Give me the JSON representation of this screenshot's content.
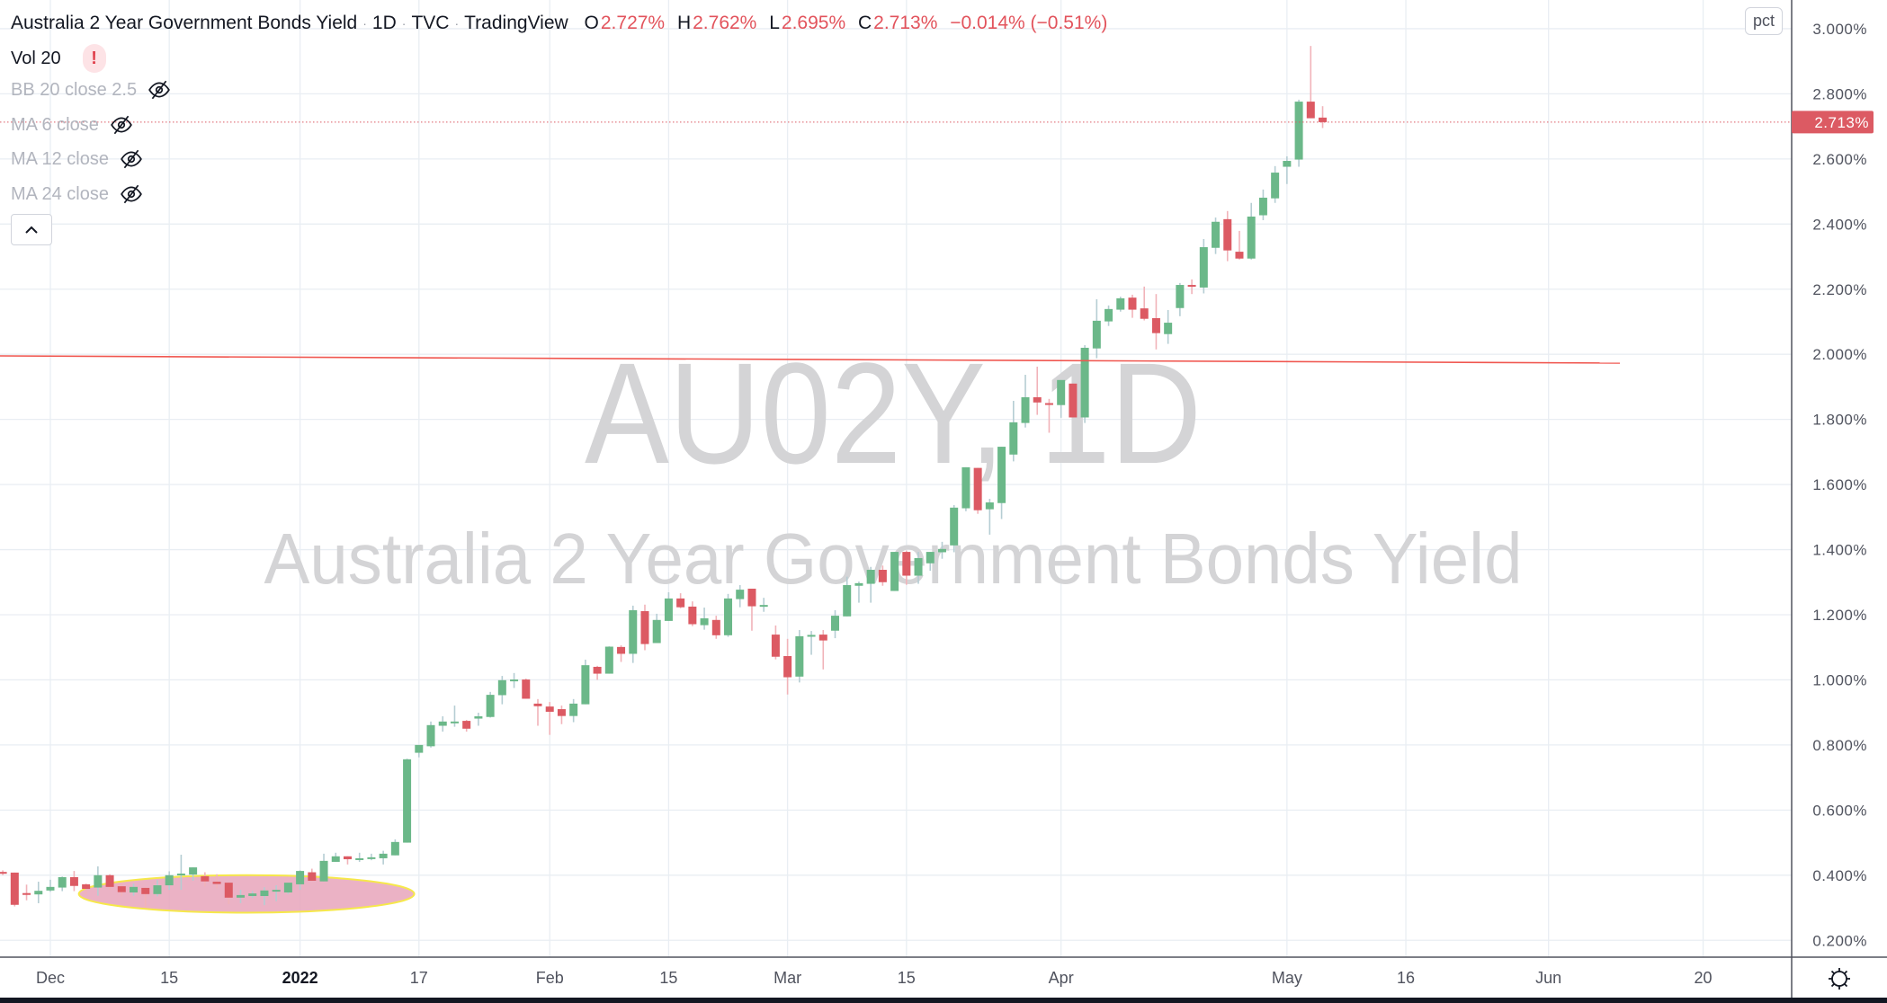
{
  "header": {
    "title": "Australia 2 Year Government Bonds Yield",
    "interval": "1D",
    "exchange": "TVC",
    "source": "TradingView",
    "separator": "·",
    "ohlc": {
      "o_label": "O",
      "o_value": "2.727%",
      "h_label": "H",
      "h_value": "2.762%",
      "l_label": "L",
      "l_value": "2.695%",
      "c_label": "C",
      "c_value": "2.713%",
      "change": "−0.014% (−0.51%)"
    }
  },
  "indicators": [
    {
      "label": "Vol 20",
      "status": "error",
      "status_glyph": "!"
    },
    {
      "label": "BB 20 close 2.5",
      "hidden": true
    },
    {
      "label": "MA 6 close",
      "hidden": true
    },
    {
      "label": "MA 12 close",
      "hidden": true
    },
    {
      "label": "MA 24 close",
      "hidden": true
    }
  ],
  "price_axis": {
    "scale_button": "pct",
    "last_price_label": "2.713%",
    "last_price": 2.713,
    "tick_labels": [
      "3.000%",
      "2.800%",
      "2.600%",
      "2.400%",
      "2.200%",
      "2.000%",
      "1.800%",
      "1.600%",
      "1.400%",
      "1.200%",
      "1.000%",
      "0.800%",
      "0.600%",
      "0.400%",
      "0.200%"
    ]
  },
  "watermark": {
    "symbol": "AU02Y, 1D",
    "description": "Australia 2 Year Government Bonds Yield"
  },
  "colors": {
    "up": "#6bb889",
    "down": "#dc5a63",
    "up_wick": "#b5cdd3",
    "down_wick": "#f1b3b9",
    "last_price": "#dc5a63",
    "trend_line": "#f0564f",
    "highlight_fill": "#e8a4bb",
    "highlight_stroke": "#f6e84a",
    "grid": "#e9eef3"
  },
  "chart_data": {
    "type": "candlestick",
    "symbol": "AU02Y",
    "interval": "1D",
    "y_unit": "%",
    "ylim": [
      0.2,
      3.0
    ],
    "grid": true,
    "x_ticks": [
      {
        "label": "Dec",
        "date": "2021-12-01",
        "bold": false
      },
      {
        "label": "15",
        "date": "2021-12-15",
        "bold": false
      },
      {
        "label": "2022",
        "date": "2022-01-03",
        "bold": true
      },
      {
        "label": "17",
        "date": "2022-01-17",
        "bold": false
      },
      {
        "label": "Feb",
        "date": "2022-02-01",
        "bold": false
      },
      {
        "label": "15",
        "date": "2022-02-15",
        "bold": false
      },
      {
        "label": "Mar",
        "date": "2022-03-01",
        "bold": false
      },
      {
        "label": "15",
        "date": "2022-03-15",
        "bold": false
      },
      {
        "label": "Apr",
        "date": "2022-04-01",
        "bold": false
      },
      {
        "label": "May",
        "date": "2022-05-02",
        "bold": false
      },
      {
        "label": "16",
        "date": "2022-05-16",
        "bold": false
      },
      {
        "label": "Jun",
        "date": "2022-06-01",
        "bold": false
      },
      {
        "label": "20",
        "date": "2022-06-20",
        "bold": false
      }
    ],
    "columns": [
      "date",
      "open",
      "high",
      "low",
      "close"
    ],
    "candles": [
      [
        "2021-11-25",
        0.41,
        0.415,
        0.4,
        0.405
      ],
      [
        "2021-11-26",
        0.408,
        0.408,
        0.304,
        0.309
      ],
      [
        "2021-11-29",
        0.345,
        0.371,
        0.323,
        0.343
      ],
      [
        "2021-11-30",
        0.341,
        0.38,
        0.314,
        0.352
      ],
      [
        "2021-12-01",
        0.353,
        0.386,
        0.349,
        0.364
      ],
      [
        "2021-12-02",
        0.362,
        0.396,
        0.351,
        0.394
      ],
      [
        "2021-12-03",
        0.394,
        0.413,
        0.351,
        0.367
      ],
      [
        "2021-12-06",
        0.372,
        0.374,
        0.342,
        0.358
      ],
      [
        "2021-12-07",
        0.362,
        0.427,
        0.337,
        0.4
      ],
      [
        "2021-12-08",
        0.4,
        0.403,
        0.355,
        0.364
      ],
      [
        "2021-12-09",
        0.366,
        0.374,
        0.335,
        0.348
      ],
      [
        "2021-12-10",
        0.347,
        0.374,
        0.337,
        0.364
      ],
      [
        "2021-12-13",
        0.361,
        0.364,
        0.3,
        0.342
      ],
      [
        "2021-12-14",
        0.342,
        0.385,
        0.335,
        0.369
      ],
      [
        "2021-12-15",
        0.369,
        0.412,
        0.355,
        0.4
      ],
      [
        "2021-12-16",
        0.4,
        0.463,
        0.355,
        0.405
      ],
      [
        "2021-12-17",
        0.402,
        0.424,
        0.383,
        0.424
      ],
      [
        "2021-12-20",
        0.397,
        0.409,
        0.365,
        0.381
      ],
      [
        "2021-12-21",
        0.38,
        0.403,
        0.36,
        0.373
      ],
      [
        "2021-12-22",
        0.377,
        0.377,
        0.311,
        0.331
      ],
      [
        "2021-12-23",
        0.331,
        0.355,
        0.314,
        0.339
      ],
      [
        "2021-12-24",
        0.336,
        0.351,
        0.33,
        0.344
      ],
      [
        "2021-12-29",
        0.336,
        0.363,
        0.308,
        0.353
      ],
      [
        "2021-12-30",
        0.351,
        0.369,
        0.32,
        0.355
      ],
      [
        "2021-12-31",
        0.347,
        0.377,
        0.342,
        0.377
      ],
      [
        "2022-01-03",
        0.372,
        0.415,
        0.355,
        0.413
      ],
      [
        "2022-01-04",
        0.409,
        0.42,
        0.381,
        0.383
      ],
      [
        "2022-01-05",
        0.381,
        0.466,
        0.381,
        0.444
      ],
      [
        "2022-01-06",
        0.441,
        0.469,
        0.441,
        0.458
      ],
      [
        "2022-01-07",
        0.458,
        0.458,
        0.433,
        0.449
      ],
      [
        "2022-01-10",
        0.451,
        0.469,
        0.441,
        0.452
      ],
      [
        "2022-01-11",
        0.45,
        0.466,
        0.446,
        0.455
      ],
      [
        "2022-01-12",
        0.452,
        0.475,
        0.433,
        0.466
      ],
      [
        "2022-01-13",
        0.461,
        0.51,
        0.461,
        0.502
      ],
      [
        "2022-01-14",
        0.5,
        0.758,
        0.5,
        0.756
      ],
      [
        "2022-01-17",
        0.776,
        0.8,
        0.762,
        0.8
      ],
      [
        "2022-01-18",
        0.796,
        0.872,
        0.792,
        0.861
      ],
      [
        "2022-01-19",
        0.859,
        0.888,
        0.841,
        0.872
      ],
      [
        "2022-01-20",
        0.87,
        0.921,
        0.856,
        0.872
      ],
      [
        "2022-01-21",
        0.874,
        0.877,
        0.841,
        0.85
      ],
      [
        "2022-01-24",
        0.881,
        0.899,
        0.859,
        0.888
      ],
      [
        "2022-01-25",
        0.886,
        0.963,
        0.884,
        0.954
      ],
      [
        "2022-01-26",
        0.953,
        1.012,
        0.925,
        0.999
      ],
      [
        "2022-01-27",
        0.999,
        1.021,
        0.975,
        1.001
      ],
      [
        "2022-01-28",
        1.001,
        1.004,
        0.942,
        0.942
      ],
      [
        "2022-01-31",
        0.927,
        0.941,
        0.859,
        0.919
      ],
      [
        "2022-02-01",
        0.918,
        0.932,
        0.831,
        0.902
      ],
      [
        "2022-02-02",
        0.91,
        0.921,
        0.864,
        0.889
      ],
      [
        "2022-02-03",
        0.889,
        0.941,
        0.87,
        0.927
      ],
      [
        "2022-02-04",
        0.925,
        1.062,
        0.925,
        1.045
      ],
      [
        "2022-02-07",
        1.04,
        1.043,
        1.0,
        1.019
      ],
      [
        "2022-02-08",
        1.019,
        1.103,
        1.019,
        1.102
      ],
      [
        "2022-02-09",
        1.101,
        1.106,
        1.055,
        1.08
      ],
      [
        "2022-02-10",
        1.08,
        1.228,
        1.052,
        1.214
      ],
      [
        "2022-02-11",
        1.211,
        1.231,
        1.091,
        1.11
      ],
      [
        "2022-02-14",
        1.113,
        1.203,
        1.113,
        1.184
      ],
      [
        "2022-02-15",
        1.181,
        1.269,
        1.181,
        1.25
      ],
      [
        "2022-02-16",
        1.25,
        1.266,
        1.22,
        1.223
      ],
      [
        "2022-02-17",
        1.225,
        1.241,
        1.165,
        1.171
      ],
      [
        "2022-02-18",
        1.168,
        1.222,
        1.154,
        1.189
      ],
      [
        "2022-02-21",
        1.184,
        1.197,
        1.126,
        1.137
      ],
      [
        "2022-02-22",
        1.137,
        1.264,
        1.132,
        1.25
      ],
      [
        "2022-02-23",
        1.248,
        1.291,
        1.223,
        1.277
      ],
      [
        "2022-02-24",
        1.28,
        1.28,
        1.151,
        1.226
      ],
      [
        "2022-02-25",
        1.225,
        1.252,
        1.209,
        1.23
      ],
      [
        "2022-02-28",
        1.139,
        1.167,
        1.063,
        1.071
      ],
      [
        "2022-03-01",
        1.073,
        1.126,
        0.955,
        1.008
      ],
      [
        "2022-03-02",
        1.01,
        1.153,
        0.992,
        1.134
      ],
      [
        "2022-03-03",
        1.133,
        1.15,
        1.077,
        1.138
      ],
      [
        "2022-03-04",
        1.139,
        1.153,
        1.032,
        1.121
      ],
      [
        "2022-03-07",
        1.151,
        1.214,
        1.128,
        1.197
      ],
      [
        "2022-03-08",
        1.195,
        1.317,
        1.195,
        1.291
      ],
      [
        "2022-03-09",
        1.289,
        1.302,
        1.237,
        1.297
      ],
      [
        "2022-03-10",
        1.295,
        1.347,
        1.237,
        1.338
      ],
      [
        "2022-03-11",
        1.338,
        1.351,
        1.289,
        1.3
      ],
      [
        "2022-03-14",
        1.273,
        1.393,
        1.273,
        1.393
      ],
      [
        "2022-03-15",
        1.393,
        1.397,
        1.292,
        1.32
      ],
      [
        "2022-03-16",
        1.32,
        1.393,
        1.295,
        1.374
      ],
      [
        "2022-03-17",
        1.358,
        1.393,
        1.335,
        1.393
      ],
      [
        "2022-03-18",
        1.392,
        1.424,
        1.372,
        1.402
      ],
      [
        "2022-03-21",
        1.413,
        1.537,
        1.392,
        1.529
      ],
      [
        "2022-03-22",
        1.527,
        1.653,
        1.518,
        1.653
      ],
      [
        "2022-03-23",
        1.651,
        1.651,
        1.51,
        1.521
      ],
      [
        "2022-03-24",
        1.524,
        1.556,
        1.446,
        1.545
      ],
      [
        "2022-03-25",
        1.543,
        1.716,
        1.494,
        1.716
      ],
      [
        "2022-03-28",
        1.692,
        1.857,
        1.671,
        1.791
      ],
      [
        "2022-03-29",
        1.789,
        1.937,
        1.775,
        1.868
      ],
      [
        "2022-03-30",
        1.868,
        1.962,
        1.814,
        1.852
      ],
      [
        "2022-03-31",
        1.85,
        1.863,
        1.759,
        1.846
      ],
      [
        "2022-04-01",
        1.844,
        1.921,
        1.805,
        1.921
      ],
      [
        "2022-04-04",
        1.91,
        1.91,
        1.806,
        1.806
      ],
      [
        "2022-04-05",
        1.806,
        2.028,
        1.789,
        2.02
      ],
      [
        "2022-04-06",
        2.018,
        2.169,
        1.988,
        2.103
      ],
      [
        "2022-04-07",
        2.101,
        2.15,
        2.087,
        2.139
      ],
      [
        "2022-04-08",
        2.137,
        2.177,
        2.131,
        2.172
      ],
      [
        "2022-04-11",
        2.174,
        2.183,
        2.112,
        2.137
      ],
      [
        "2022-04-12",
        2.141,
        2.208,
        2.104,
        2.109
      ],
      [
        "2022-04-13",
        2.111,
        2.185,
        2.015,
        2.065
      ],
      [
        "2022-04-14",
        2.062,
        2.136,
        2.032,
        2.097
      ],
      [
        "2022-04-19",
        2.142,
        2.219,
        2.117,
        2.213
      ],
      [
        "2022-04-20",
        2.213,
        2.23,
        2.185,
        2.209
      ],
      [
        "2022-04-21",
        2.205,
        2.354,
        2.187,
        2.329
      ],
      [
        "2022-04-22",
        2.327,
        2.42,
        2.308,
        2.407
      ],
      [
        "2022-04-25",
        2.415,
        2.44,
        2.286,
        2.319
      ],
      [
        "2022-04-26",
        2.315,
        2.379,
        2.291,
        2.294
      ],
      [
        "2022-04-27",
        2.294,
        2.465,
        2.291,
        2.423
      ],
      [
        "2022-04-28",
        2.427,
        2.506,
        2.412,
        2.481
      ],
      [
        "2022-04-29",
        2.479,
        2.578,
        2.465,
        2.558
      ],
      [
        "2022-05-02",
        2.576,
        2.608,
        2.523,
        2.594
      ],
      [
        "2022-05-03",
        2.598,
        2.782,
        2.576,
        2.776
      ],
      [
        "2022-05-04",
        2.776,
        2.947,
        2.725,
        2.725
      ],
      [
        "2022-05-05",
        2.727,
        2.762,
        2.695,
        2.713
      ]
    ],
    "annotations": [
      {
        "type": "trend_line",
        "start_price": 1.995,
        "end_price": 1.973,
        "end_date": "2022-06-09"
      },
      {
        "type": "highlight_ellipse",
        "start_date": "2021-12-06",
        "end_date": "2022-01-14",
        "price_low": 0.285,
        "price_high": 0.4
      }
    ]
  },
  "settings": {
    "gear_icon": "gear-icon",
    "collapse_icon": "chevron-up-icon"
  }
}
